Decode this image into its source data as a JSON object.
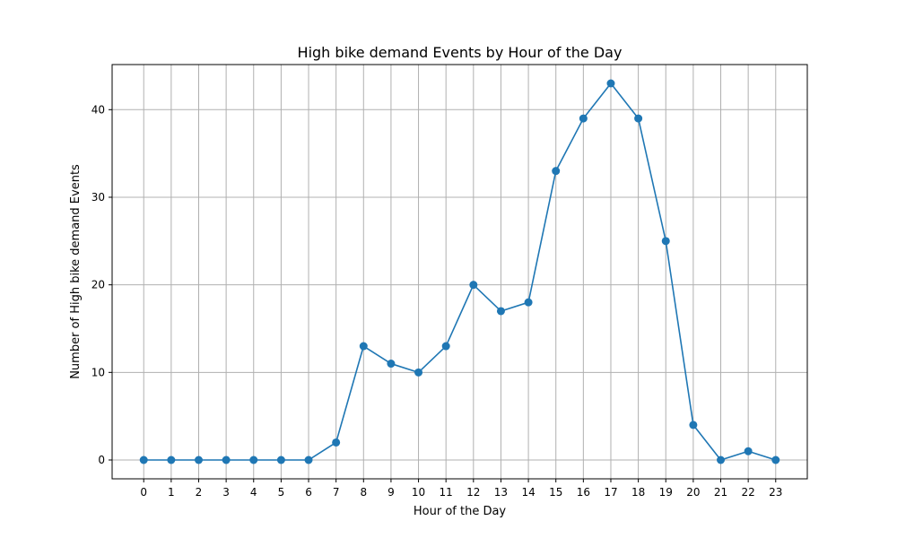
{
  "chart_data": {
    "type": "line",
    "title": "High bike demand Events by Hour of the Day",
    "xlabel": "Hour of the Day",
    "ylabel": "Number of High bike demand Events",
    "x": [
      0,
      1,
      2,
      3,
      4,
      5,
      6,
      7,
      8,
      9,
      10,
      11,
      12,
      13,
      14,
      15,
      16,
      17,
      18,
      19,
      20,
      21,
      22,
      23
    ],
    "x_tick_labels": [
      "0",
      "1",
      "2",
      "3",
      "4",
      "5",
      "6",
      "7",
      "8",
      "9",
      "10",
      "11",
      "12",
      "13",
      "14",
      "15",
      "16",
      "17",
      "18",
      "19",
      "20",
      "21",
      "22",
      "23"
    ],
    "series": [
      {
        "values": [
          0,
          0,
          0,
          0,
          0,
          0,
          0,
          2,
          13,
          11,
          10,
          13,
          20,
          17,
          18,
          33,
          39,
          43,
          39,
          25,
          4,
          0,
          1,
          0
        ],
        "color": "#1f77b4",
        "marker": "circle"
      }
    ],
    "y_ticks": [
      0,
      10,
      20,
      30,
      40
    ],
    "y_tick_labels": [
      "0",
      "10",
      "20",
      "30",
      "40"
    ],
    "xlim": [
      -1.15,
      24.15
    ],
    "ylim": [
      -2.15,
      45.15
    ],
    "grid": true,
    "grid_color": "#b0b0b0",
    "legend": false
  }
}
